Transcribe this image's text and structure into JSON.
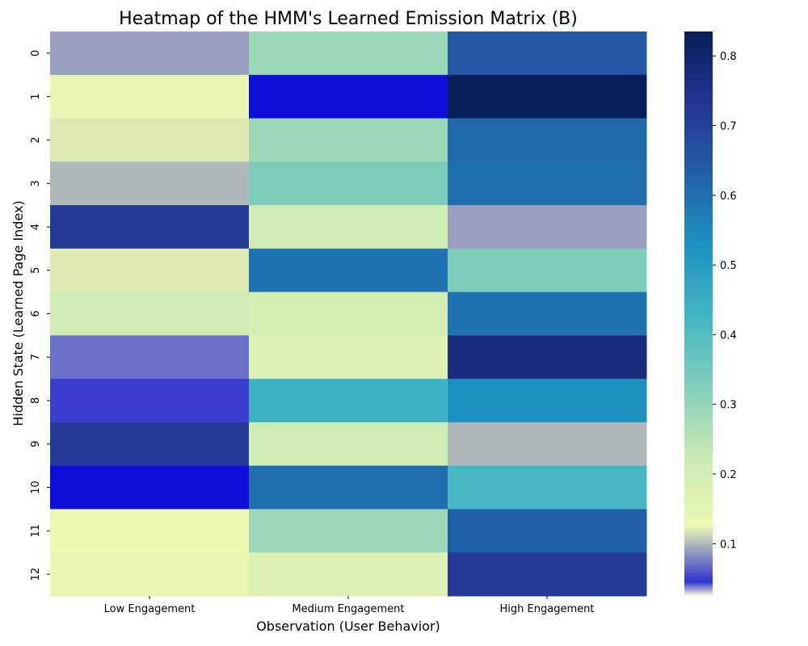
{
  "chart_data": {
    "type": "heatmap",
    "title": "Heatmap of the HMM's Learned Emission Matrix (B)",
    "xlabel": "Observation (User Behavior)",
    "ylabel": "Hidden State (Learned Page Index)",
    "x_categories": [
      "Low Engagement",
      "Medium Engagement",
      "High Engagement"
    ],
    "y_categories": [
      "0",
      "1",
      "2",
      "3",
      "4",
      "5",
      "6",
      "7",
      "8",
      "9",
      "10",
      "11",
      "12"
    ],
    "values": [
      [
        0.09,
        0.29,
        0.65
      ],
      [
        0.14,
        0.03,
        0.83
      ],
      [
        0.12,
        0.29,
        0.61
      ],
      [
        0.1,
        0.33,
        0.6
      ],
      [
        0.72,
        0.2,
        0.09
      ],
      [
        0.12,
        0.59,
        0.33
      ],
      [
        0.21,
        0.19,
        0.59
      ],
      [
        0.07,
        0.17,
        0.77
      ],
      [
        0.05,
        0.44,
        0.53
      ],
      [
        0.72,
        0.21,
        0.1
      ],
      [
        0.03,
        0.6,
        0.42
      ],
      [
        0.13,
        0.29,
        0.63
      ],
      [
        0.14,
        0.17,
        0.72
      ]
    ],
    "colormap": "YlGnBu",
    "vmin": 0.025,
    "vmax": 0.835,
    "colorbar_ticks": [
      0.1,
      0.2,
      0.3,
      0.4,
      0.5,
      0.6,
      0.7,
      0.8
    ],
    "grid": false
  }
}
